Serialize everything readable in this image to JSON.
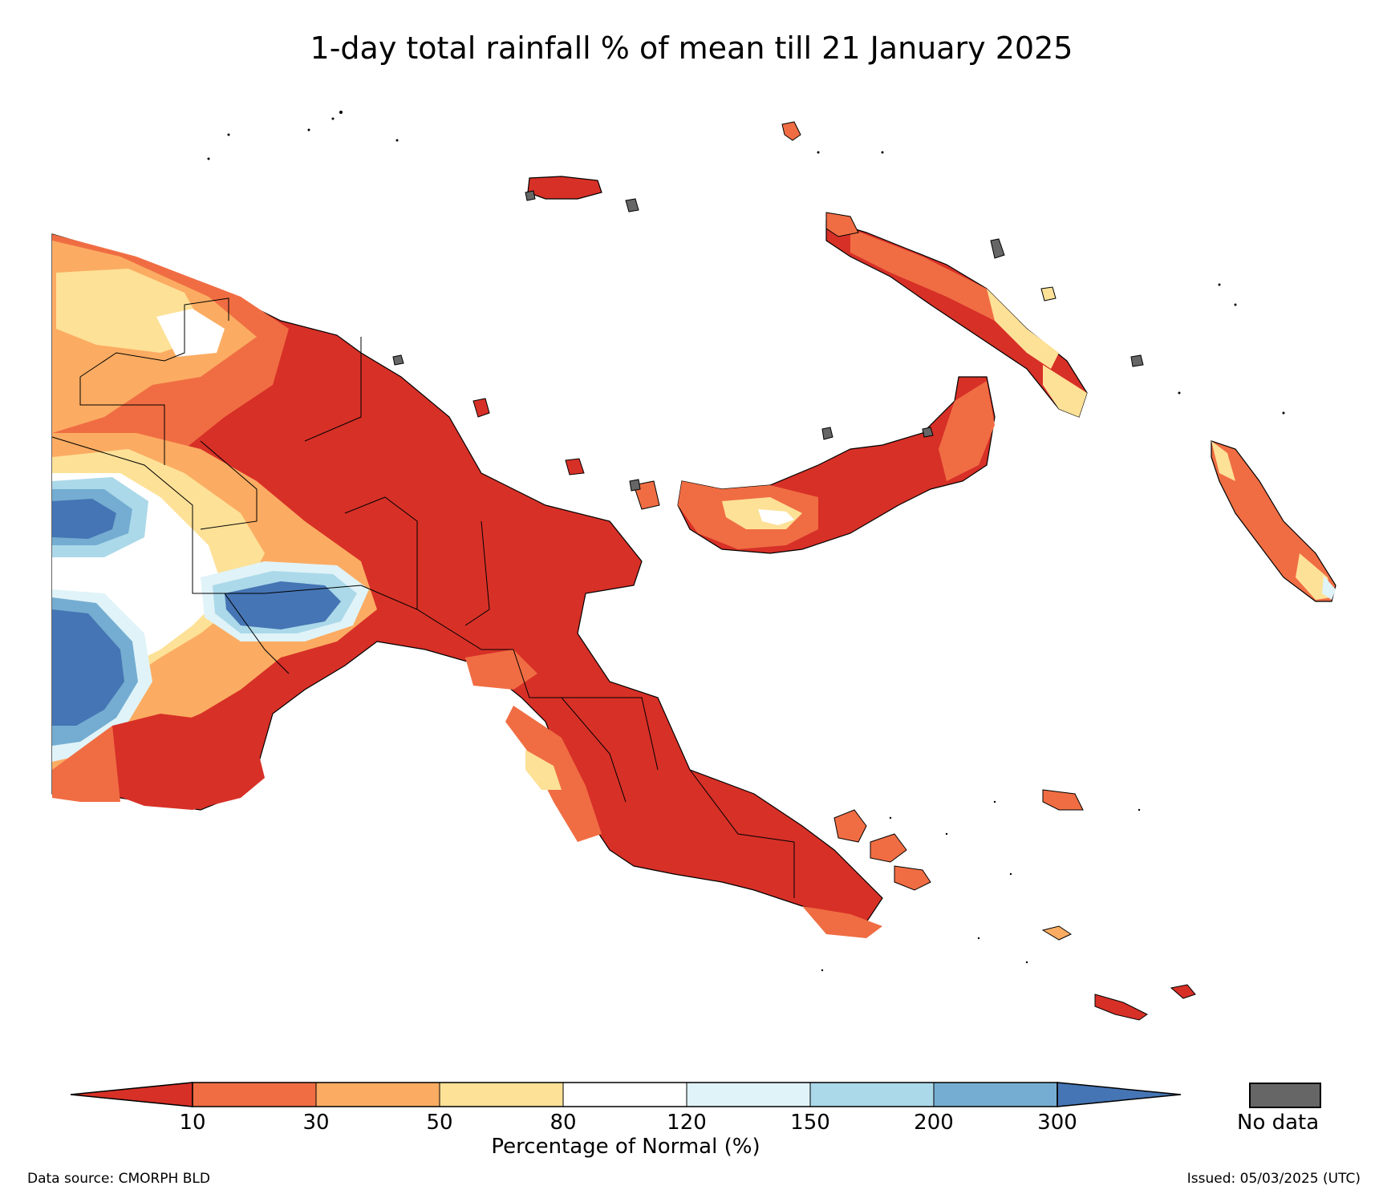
{
  "title": "1-day total rainfall % of mean till 21 January 2025",
  "colorbar": {
    "ticks": [
      "10",
      "30",
      "50",
      "80",
      "120",
      "150",
      "200",
      "300"
    ],
    "colors": [
      "#d73027",
      "#f06d43",
      "#fbac62",
      "#fde197",
      "#ffffff",
      "#e0f3f8",
      "#abd9e9",
      "#74add1",
      "#4575b4"
    ],
    "label": "Percentage of Normal (%)"
  },
  "no_data": {
    "label": "No data",
    "color": "#666666"
  },
  "footer": {
    "source": "Data source: CMORPH BLD",
    "issued": "Issued: 05/03/2025 (UTC)"
  }
}
